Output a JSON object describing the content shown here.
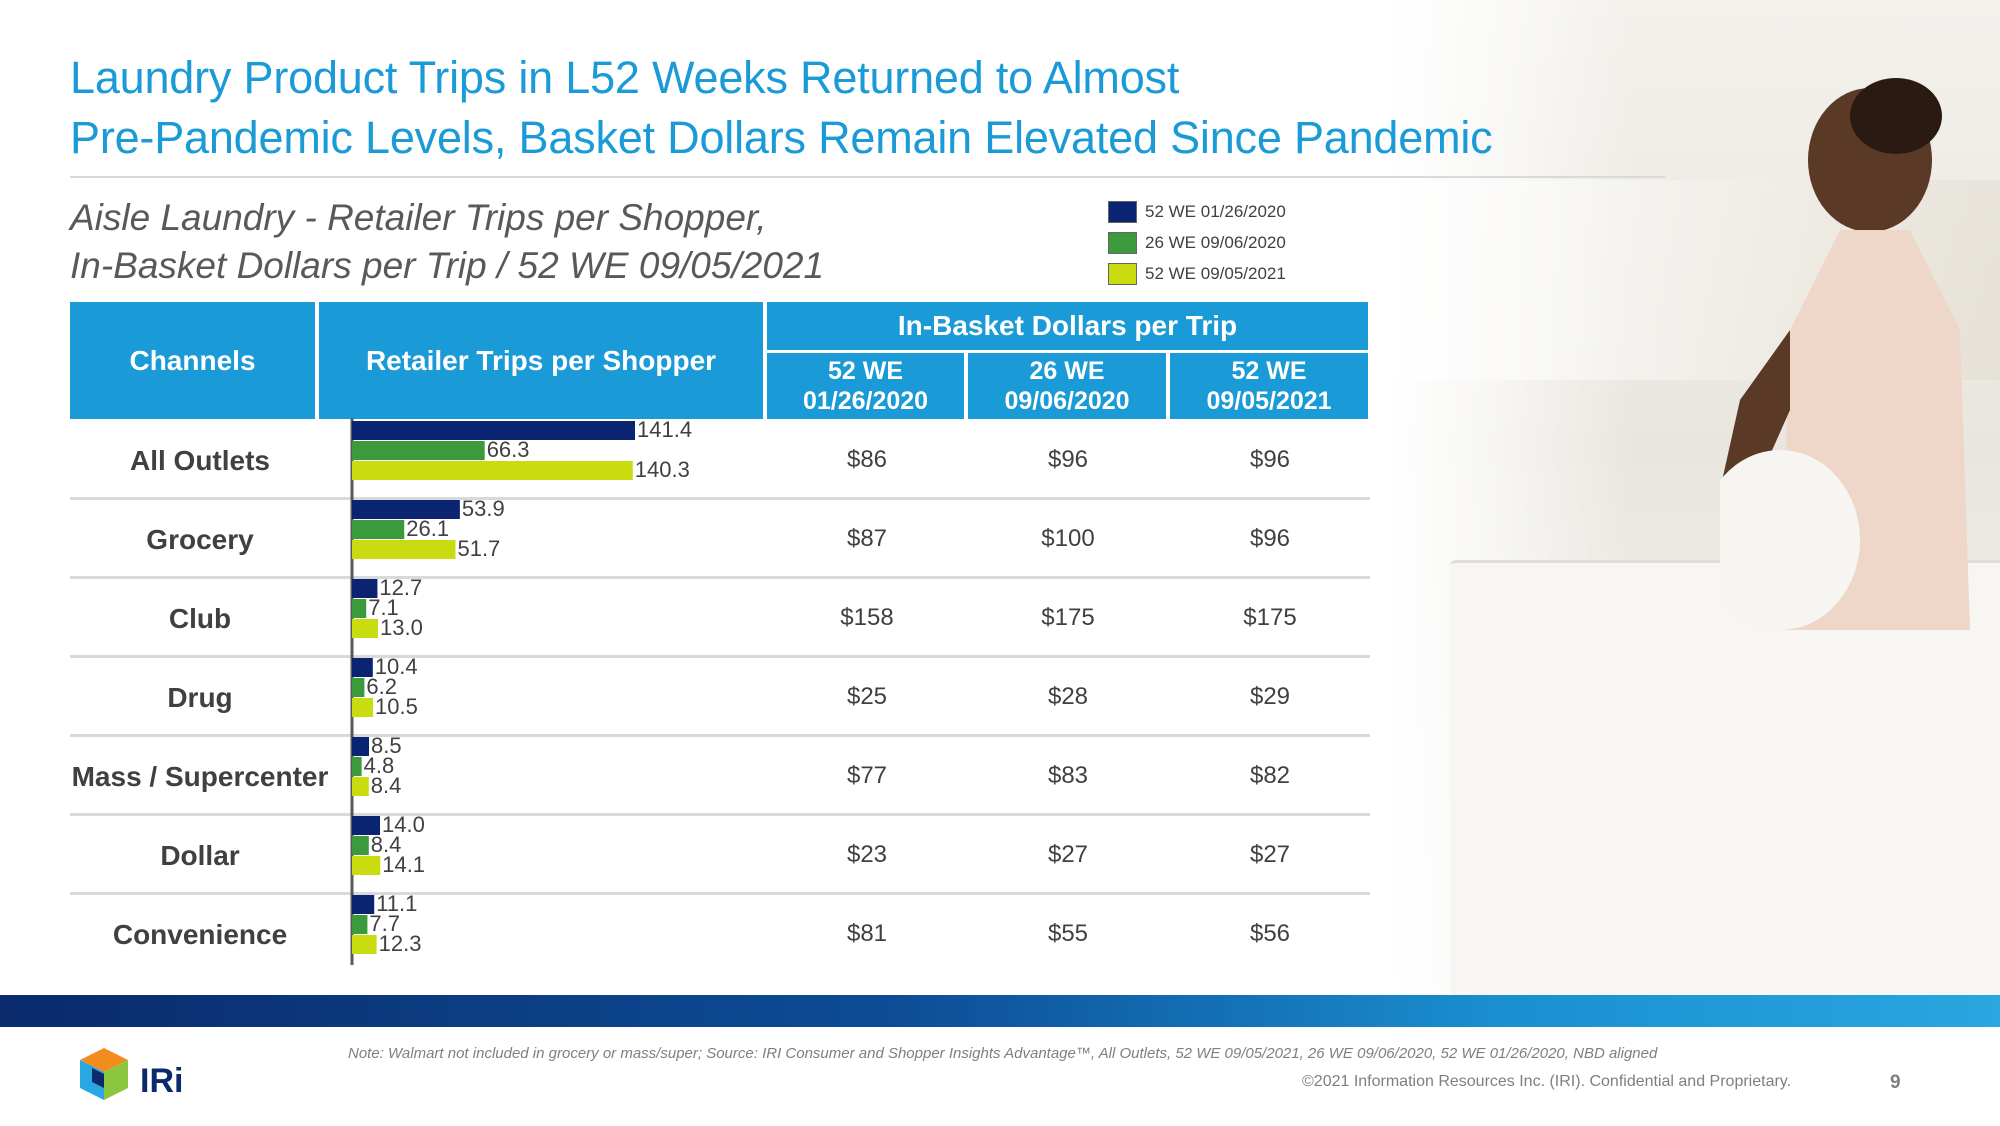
{
  "title_line1": "Laundry Product Trips in L52 Weeks Returned to Almost",
  "title_line2": "Pre-Pandemic Levels, Basket Dollars Remain Elevated Since Pandemic",
  "subtitle_line1": "Aisle Laundry - Retailer Trips per Shopper,",
  "subtitle_line2": "In-Basket Dollars per Trip / 52 WE 09/05/2021",
  "legend": [
    {
      "label": "52 WE 01/26/2020",
      "color": "#0a2472"
    },
    {
      "label": "26 WE 09/06/2020",
      "color": "#3a9a3c"
    },
    {
      "label": "52 WE 09/05/2021",
      "color": "#c9dc10"
    }
  ],
  "table": {
    "channels_header": "Channels",
    "trips_header": "Retailer Trips per Shopper",
    "basket_header": "In-Basket Dollars per Trip",
    "basket_cols": [
      {
        "line1": "52 WE",
        "line2": "01/26/2020"
      },
      {
        "line1": "26 WE",
        "line2": "09/06/2020"
      },
      {
        "line1": "52 WE",
        "line2": "09/05/2021"
      }
    ],
    "rows": [
      {
        "channel": "All Outlets",
        "basket": [
          "$86",
          "$96",
          "$96"
        ]
      },
      {
        "channel": "Grocery",
        "basket": [
          "$87",
          "$100",
          "$96"
        ]
      },
      {
        "channel": "Club",
        "basket": [
          "$158",
          "$175",
          "$175"
        ]
      },
      {
        "channel": "Drug",
        "basket": [
          "$25",
          "$28",
          "$29"
        ]
      },
      {
        "channel": "Mass / Supercenter",
        "basket": [
          "$77",
          "$83",
          "$82"
        ]
      },
      {
        "channel": "Dollar",
        "basket": [
          "$23",
          "$27",
          "$27"
        ]
      },
      {
        "channel": "Convenience",
        "basket": [
          "$81",
          "$55",
          "$56"
        ]
      }
    ]
  },
  "chart_data": {
    "type": "bar",
    "orientation": "horizontal",
    "title": "Retailer Trips per Shopper",
    "categories": [
      "All Outlets",
      "Grocery",
      "Club",
      "Drug",
      "Mass / Supercenter",
      "Dollar",
      "Convenience"
    ],
    "series": [
      {
        "name": "52 WE 01/26/2020",
        "color": "#0a2472",
        "values": [
          141.4,
          53.9,
          12.7,
          10.4,
          8.5,
          14.0,
          11.1
        ],
        "labels": [
          "141.4",
          "53.9",
          "12.7",
          "10.4",
          "8.5",
          "14.0",
          "11.1"
        ]
      },
      {
        "name": "26 WE 09/06/2020",
        "color": "#3a9a3c",
        "values": [
          66.3,
          26.1,
          7.1,
          6.2,
          4.8,
          8.4,
          7.7
        ],
        "labels": [
          "66.3",
          "26.1",
          "7.1",
          "6.2",
          "4.8",
          "8.4",
          "7.7"
        ]
      },
      {
        "name": "52 WE 09/05/2021",
        "color": "#c9dc10",
        "values": [
          140.3,
          51.7,
          13.0,
          10.5,
          8.4,
          14.1,
          12.3
        ],
        "labels": [
          "140.3",
          "51.7",
          "13.0",
          "10.5",
          "8.4",
          "14.1",
          "12.3"
        ]
      }
    ],
    "xlim": [
      0,
      141.4
    ],
    "grid": false,
    "legend": "top-right"
  },
  "footer": {
    "note": "Note: Walmart not included in grocery or mass/super; Source: IRI Consumer and Shopper Insights Advantage™, All Outlets, 52 WE 09/05/2021, 26 WE 09/06/2020, 52 WE 01/26/2020, NBD aligned",
    "copyright": "©2021 Information Resources Inc. (IRI). Confidential and Proprietary.",
    "page": "9",
    "logo_text": "IRi"
  }
}
